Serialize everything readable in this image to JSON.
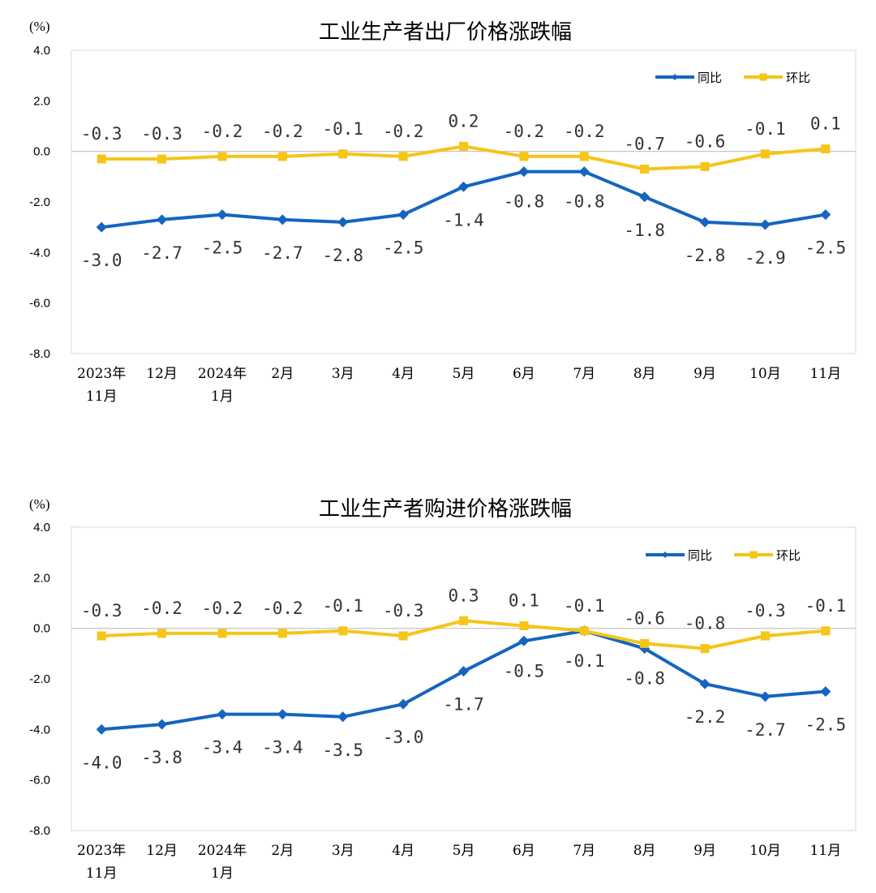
{
  "colors": {
    "yoy": "#1565C0",
    "mom": "#F5C518",
    "grid": "#d9d9d9",
    "axis": "#bfbfbf"
  },
  "chart_data": [
    {
      "type": "line",
      "title": "工业生产者出厂价格涨跌幅",
      "unit": "(%)",
      "ylim": [
        -8.0,
        4.0
      ],
      "yticks": [
        "4.0",
        "2.0",
        "0.0",
        "-2.0",
        "-4.0",
        "-6.0",
        "-8.0"
      ],
      "categories": [
        [
          "2023年",
          "11月"
        ],
        [
          "12月"
        ],
        [
          "2024年",
          "1月"
        ],
        [
          "2月"
        ],
        [
          "3月"
        ],
        [
          "4月"
        ],
        [
          "5月"
        ],
        [
          "6月"
        ],
        [
          "7月"
        ],
        [
          "8月"
        ],
        [
          "9月"
        ],
        [
          "10月"
        ],
        [
          "11月"
        ]
      ],
      "legend": {
        "position": "top-right"
      },
      "series": [
        {
          "name": "同比",
          "key": "yoy",
          "marker": "diamond",
          "values": [
            -3.0,
            -2.7,
            -2.5,
            -2.7,
            -2.8,
            -2.5,
            -1.4,
            -0.8,
            -0.8,
            -1.8,
            -2.8,
            -2.9,
            -2.5
          ],
          "labels": [
            "-3.0",
            "-2.7",
            "-2.5",
            "-2.7",
            "-2.8",
            "-2.5",
            "-1.4",
            "-0.8",
            "-0.8",
            "-1.8",
            "-2.8",
            "-2.9",
            "-2.5"
          ]
        },
        {
          "name": "环比",
          "key": "mom",
          "marker": "square",
          "values": [
            -0.3,
            -0.3,
            -0.2,
            -0.2,
            -0.1,
            -0.2,
            0.2,
            -0.2,
            -0.2,
            -0.7,
            -0.6,
            -0.1,
            0.1
          ],
          "labels": [
            "-0.3",
            "-0.3",
            "-0.2",
            "-0.2",
            "-0.1",
            "-0.2",
            "0.2",
            "-0.2",
            "-0.2",
            "-0.7",
            "-0.6",
            "-0.1",
            "0.1"
          ]
        }
      ]
    },
    {
      "type": "line",
      "title": "工业生产者购进价格涨跌幅",
      "unit": "(%)",
      "ylim": [
        -8.0,
        4.0
      ],
      "yticks": [
        "4.0",
        "2.0",
        "0.0",
        "-2.0",
        "-4.0",
        "-6.0",
        "-8.0"
      ],
      "categories": [
        [
          "2023年",
          "11月"
        ],
        [
          "12月"
        ],
        [
          "2024年",
          "1月"
        ],
        [
          "2月"
        ],
        [
          "3月"
        ],
        [
          "4月"
        ],
        [
          "5月"
        ],
        [
          "6月"
        ],
        [
          "7月"
        ],
        [
          "8月"
        ],
        [
          "9月"
        ],
        [
          "10月"
        ],
        [
          "11月"
        ]
      ],
      "legend": {
        "position": "top-right"
      },
      "series": [
        {
          "name": "同比",
          "key": "yoy",
          "marker": "diamond",
          "values": [
            -4.0,
            -3.8,
            -3.4,
            -3.4,
            -3.5,
            -3.0,
            -1.7,
            -0.5,
            -0.1,
            -0.8,
            -2.2,
            -2.7,
            -2.5
          ],
          "labels": [
            "-4.0",
            "-3.8",
            "-3.4",
            "-3.4",
            "-3.5",
            "-3.0",
            "-1.7",
            "-0.5",
            "-0.1",
            "-0.8",
            "-2.2",
            "-2.7",
            "-2.5"
          ]
        },
        {
          "name": "环比",
          "key": "mom",
          "marker": "square",
          "values": [
            -0.3,
            -0.2,
            -0.2,
            -0.2,
            -0.1,
            -0.3,
            0.3,
            0.1,
            -0.1,
            -0.6,
            -0.8,
            -0.3,
            -0.1
          ],
          "labels": [
            "-0.3",
            "-0.2",
            "-0.2",
            "-0.2",
            "-0.1",
            "-0.3",
            "0.3",
            "0.1",
            "-0.1",
            "-0.6",
            "-0.8",
            "-0.3",
            "-0.1"
          ]
        }
      ]
    }
  ]
}
